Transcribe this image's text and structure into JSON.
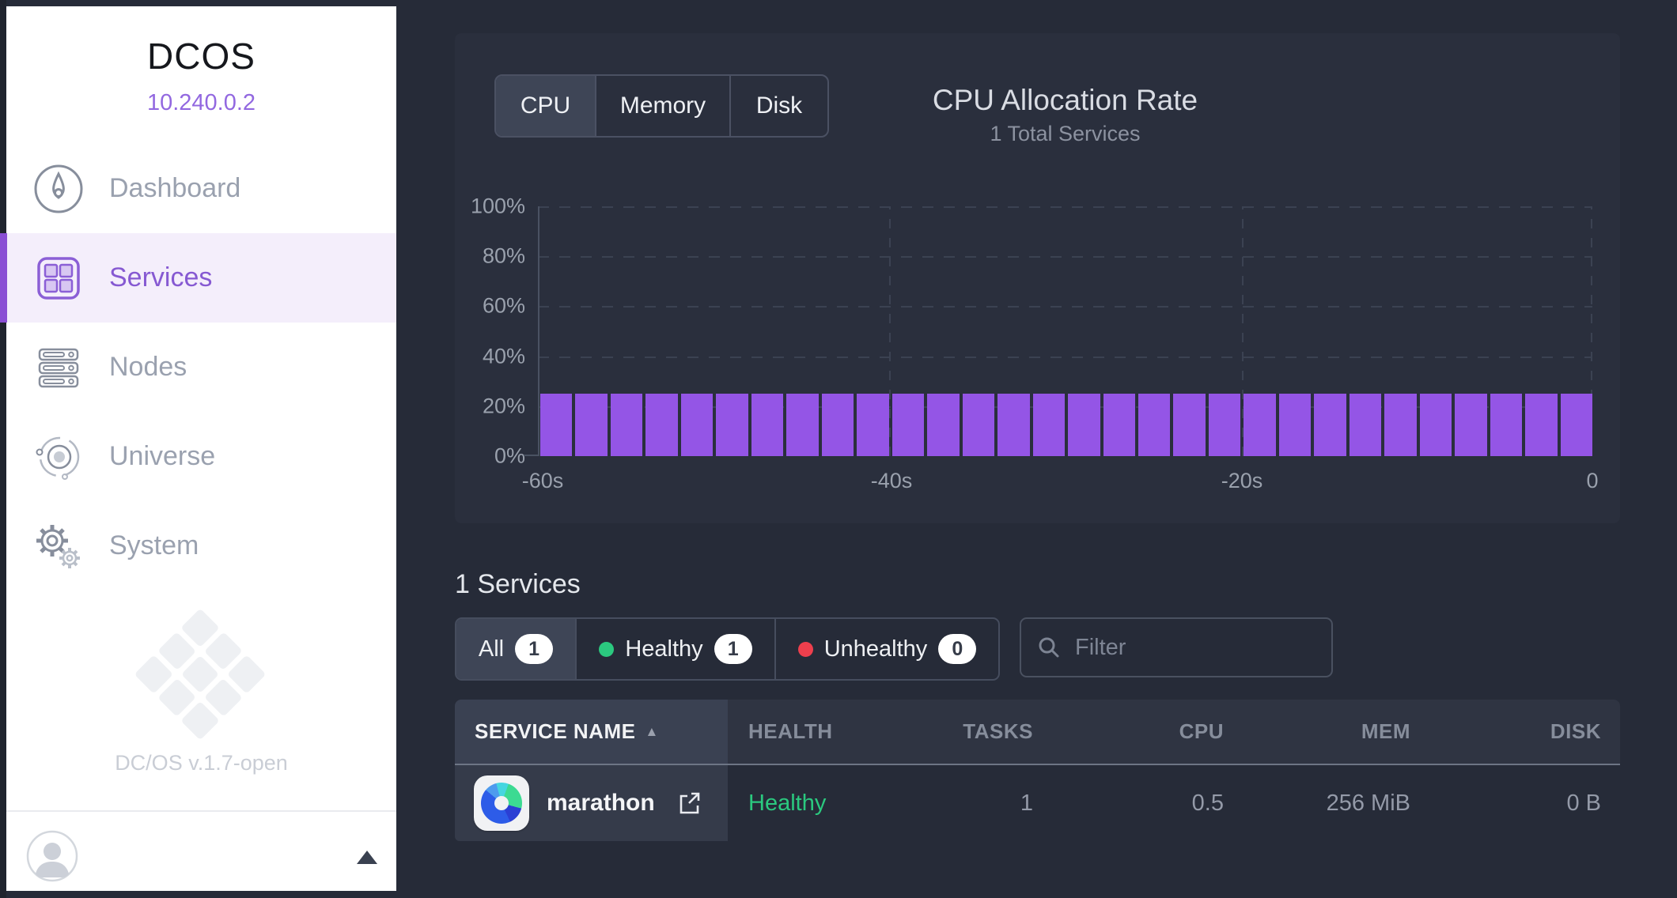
{
  "sidebar": {
    "logo": "DCOS",
    "ip": "10.240.0.2",
    "items": [
      {
        "label": "Dashboard"
      },
      {
        "label": "Services"
      },
      {
        "label": "Nodes"
      },
      {
        "label": "Universe"
      },
      {
        "label": "System"
      }
    ],
    "version": "DC/OS v.1.7-open"
  },
  "chart_panel": {
    "tabs": [
      {
        "label": "CPU"
      },
      {
        "label": "Memory"
      },
      {
        "label": "Disk"
      }
    ],
    "active_tab": "CPU",
    "title": "CPU Allocation Rate",
    "subtitle": "1 Total Services"
  },
  "chart_data": {
    "type": "bar",
    "title": "CPU Allocation Rate",
    "ylim": [
      0,
      100
    ],
    "y_ticks": [
      "100%",
      "80%",
      "60%",
      "40%",
      "20%",
      "0%"
    ],
    "x_ticks": [
      "-60s",
      "-40s",
      "-20s",
      "0"
    ],
    "x_range_seconds": [
      -60,
      0
    ],
    "grid": "dashed",
    "bar_color": "#9455e6",
    "values": [
      25,
      25,
      25,
      25,
      25,
      25,
      25,
      25,
      25,
      25,
      25,
      25,
      25,
      25,
      25,
      25,
      25,
      25,
      25,
      25,
      25,
      25,
      25,
      25,
      25,
      25,
      25,
      25,
      25,
      25
    ]
  },
  "services_section": {
    "heading": "1 Services",
    "filters": [
      {
        "label": "All",
        "count": "1"
      },
      {
        "label": "Healthy",
        "count": "1",
        "dot_color": "#2bc97f"
      },
      {
        "label": "Unhealthy",
        "count": "0",
        "dot_color": "#ee3f4d"
      }
    ],
    "search_placeholder": "Filter",
    "table": {
      "columns": [
        "SERVICE NAME",
        "HEALTH",
        "TASKS",
        "CPU",
        "MEM",
        "DISK"
      ],
      "sort_column": "SERVICE NAME",
      "sort_arrow": "▲",
      "rows": [
        {
          "name": "marathon",
          "health": "Healthy",
          "health_color": "#2bc97f",
          "tasks": "1",
          "cpu": "0.5",
          "mem": "256 MiB",
          "disk": "0 B"
        }
      ]
    }
  }
}
